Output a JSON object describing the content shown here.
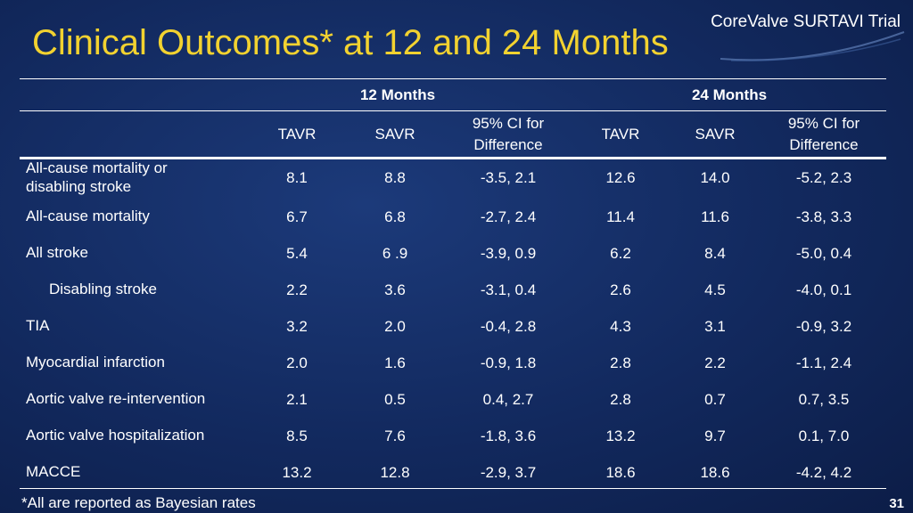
{
  "slide": {
    "title": "Clinical Outcomes* at 12 and 24 Months",
    "brand": "CoreValve SURTAVI Trial",
    "footnote": "*All are reported as Bayesian rates",
    "page_number": "31"
  },
  "table": {
    "group_headers": [
      "12 Months",
      "24 Months"
    ],
    "column_headers": [
      {
        "line1": "TAVR",
        "line2": ""
      },
      {
        "line1": "SAVR",
        "line2": ""
      },
      {
        "line1": "95% CI for",
        "line2": "Difference"
      },
      {
        "line1": "TAVR",
        "line2": ""
      },
      {
        "line1": "SAVR",
        "line2": ""
      },
      {
        "line1": "95% CI for",
        "line2": "Difference"
      }
    ],
    "rows": [
      {
        "label": "All-cause mortality or disabling stroke",
        "values": [
          "8.1",
          "8.8",
          "-3.5, 2.1",
          "12.6",
          "14.0",
          "-5.2, 2.3"
        ]
      },
      {
        "label": "All-cause mortality",
        "values": [
          "6.7",
          "6.8",
          "-2.7, 2.4",
          "11.4",
          "11.6",
          "-3.8, 3.3"
        ]
      },
      {
        "label": "All stroke",
        "values": [
          "5.4",
          "6 .9",
          "-3.9, 0.9",
          "6.2",
          "8.4",
          "-5.0, 0.4"
        ]
      },
      {
        "label": "Disabling stroke",
        "values": [
          "2.2",
          "3.6",
          "-3.1, 0.4",
          "2.6",
          "4.5",
          "-4.0, 0.1"
        ]
      },
      {
        "label": "TIA",
        "values": [
          "3.2",
          "2.0",
          "-0.4, 2.8",
          "4.3",
          "3.1",
          "-0.9, 3.2"
        ]
      },
      {
        "label": "Myocardial infarction",
        "values": [
          "2.0",
          "1.6",
          "-0.9, 1.8",
          "2.8",
          "2.2",
          "-1.1, 2.4"
        ]
      },
      {
        "label": "Aortic valve re-intervention",
        "values": [
          "2.1",
          "0.5",
          "0.4, 2.7",
          "2.8",
          "0.7",
          "0.7, 3.5"
        ]
      },
      {
        "label": "Aortic valve hospitalization",
        "values": [
          "8.5",
          "7.6",
          "-1.8, 3.6",
          "13.2",
          "9.7",
          "0.1, 7.0"
        ]
      },
      {
        "label": "MACCE",
        "values": [
          "13.2",
          "12.8",
          "-2.9, 3.7",
          "18.6",
          "18.6",
          "-4.2, 4.2"
        ]
      }
    ]
  }
}
